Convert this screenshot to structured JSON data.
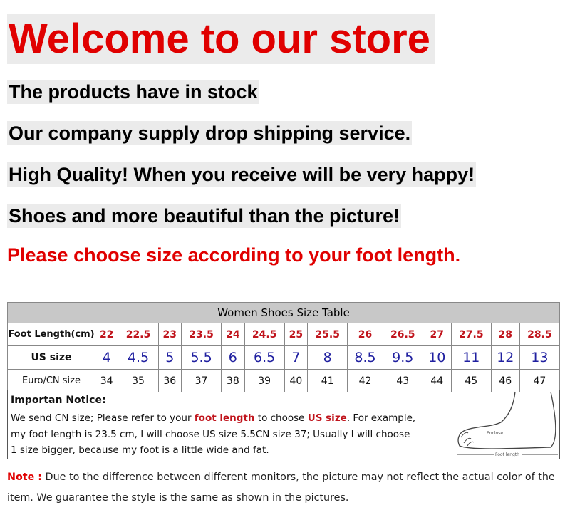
{
  "headline": "Welcome to our store",
  "lines": [
    "The products have in stock",
    "Our company supply drop shipping service.",
    "High Quality! When you receive will be very happy!",
    "Shoes and more beautiful than the picture!"
  ],
  "size_prompt": "Please choose size according to your foot length.",
  "table": {
    "title": "Women Shoes Size Table",
    "rows": [
      {
        "label": "Foot Length(cm)",
        "values": [
          "22",
          "22.5",
          "23",
          "23.5",
          "24",
          "24.5",
          "25",
          "25.5",
          "26",
          "26.5",
          "27",
          "27.5",
          "28",
          "28.5"
        ]
      },
      {
        "label": "US size",
        "values": [
          "4",
          "4.5",
          "5",
          "5.5",
          "6",
          "6.5",
          "7",
          "8",
          "8.5",
          "9.5",
          "10",
          "11",
          "12",
          "13"
        ]
      },
      {
        "label": "Euro/CN size",
        "values": [
          "34",
          "35",
          "36",
          "37",
          "38",
          "39",
          "40",
          "41",
          "42",
          "43",
          "44",
          "45",
          "46",
          "47"
        ]
      }
    ]
  },
  "notice": {
    "title": "Importan Notice:",
    "p1a": "We send CN size; Please refer to your ",
    "p1b": "foot length",
    "p1c": " to choose ",
    "p1d": "US size",
    "p1e": ". For example,",
    "p2": "my foot length is 23.5 cm, I will choose US size 5.5CN size 37; Usually I will choose",
    "p3": "1 size bigger, because my foot is a little wide and fat.",
    "diagram_enclose": "Enclose",
    "diagram_length": "Foot length"
  },
  "note": {
    "label": "Note :",
    "text": " Due to the difference between different monitors, the picture may not reflect the actual color of the item. We guarantee the style is the same as shown in the pictures."
  },
  "colors": {
    "red": "#e00000",
    "table_red": "#c0141c",
    "table_blue": "#2020a0",
    "highlight": "#ebebeb"
  }
}
